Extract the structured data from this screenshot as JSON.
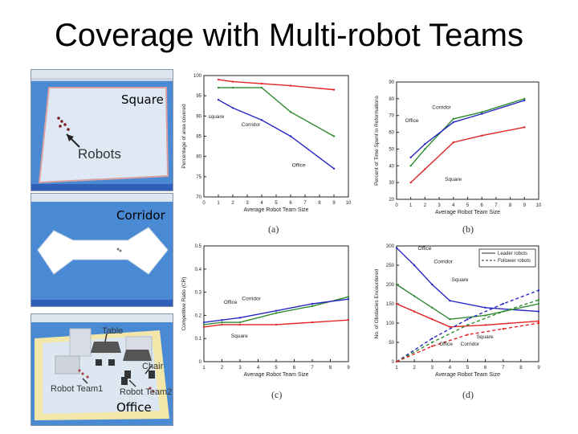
{
  "slide_title": "Coverage with Multi-robot Teams",
  "colors": {
    "red": "#e32222",
    "green": "#2f8a2f",
    "blue": "#2727c4",
    "sim_floor": "#dfe9f5",
    "sim_bg": "#4a8ad4"
  },
  "screens": {
    "square": {
      "label": "Square",
      "annotation": "Robots"
    },
    "corridor": {
      "label": "Corridor"
    },
    "office": {
      "label": "Office",
      "annotations": {
        "table": "Table",
        "chair": "Chair",
        "team1": "Robot Team1",
        "team2": "Robot Team2"
      }
    }
  },
  "chart_data": [
    {
      "id": "a",
      "type": "line",
      "caption": "(a)",
      "xlabel": "Average Robot Team Size",
      "ylabel": "Percentage of area covered",
      "xlim": [
        0,
        10
      ],
      "ylim": [
        70,
        100
      ],
      "xticks": [
        0,
        1,
        2,
        3,
        4,
        5,
        6,
        7,
        8,
        9,
        10
      ],
      "yticks": [
        70,
        75,
        80,
        85,
        90,
        95,
        100
      ],
      "series": [
        {
          "name": "square",
          "color": "red",
          "x": [
            1,
            2,
            4,
            6,
            9
          ],
          "y": [
            99,
            98.5,
            98,
            97.5,
            96.5
          ]
        },
        {
          "name": "Corridor",
          "color": "green",
          "x": [
            1,
            2,
            4,
            6,
            9
          ],
          "y": [
            97,
            97,
            97,
            91,
            85
          ]
        },
        {
          "name": "Office",
          "color": "blue",
          "x": [
            1,
            2,
            4,
            6,
            9
          ],
          "y": [
            94,
            92,
            89,
            85,
            77
          ]
        }
      ],
      "labels": [
        {
          "text": "square",
          "x": 0.3,
          "y": 89.5
        },
        {
          "text": "Corridor",
          "x": 2.6,
          "y": 87.5
        },
        {
          "text": "Office",
          "x": 6.1,
          "y": 77.5
        }
      ]
    },
    {
      "id": "b",
      "type": "line",
      "caption": "(b)",
      "xlabel": "Average Robot Team Size",
      "ylabel": "Percent of Time Spent in Reformations",
      "xlim": [
        0,
        10
      ],
      "ylim": [
        20,
        90
      ],
      "xticks": [
        0,
        1,
        2,
        3,
        4,
        5,
        6,
        7,
        8,
        9,
        10
      ],
      "yticks": [
        20,
        30,
        40,
        50,
        60,
        70,
        80,
        90
      ],
      "series": [
        {
          "name": "Square",
          "color": "red",
          "x": [
            1,
            2,
            4,
            6,
            9
          ],
          "y": [
            30,
            38,
            54,
            58,
            63
          ]
        },
        {
          "name": "Corridor",
          "color": "green",
          "x": [
            1,
            2,
            4,
            6,
            9
          ],
          "y": [
            40,
            50,
            68,
            72,
            80
          ]
        },
        {
          "name": "Office",
          "color": "blue",
          "x": [
            1,
            2,
            4,
            6,
            9
          ],
          "y": [
            45,
            53,
            66,
            71,
            79
          ]
        }
      ],
      "labels": [
        {
          "text": "Corridor",
          "x": 2.5,
          "y": 74
        },
        {
          "text": "Office",
          "x": 0.6,
          "y": 66
        },
        {
          "text": "Square",
          "x": 3.4,
          "y": 31
        }
      ]
    },
    {
      "id": "c",
      "type": "line",
      "caption": "(c)",
      "xlabel": "Average Robot Team Size",
      "ylabel": "Competitive Ratio (CR)",
      "xlim": [
        1,
        9
      ],
      "ylim": [
        0,
        0.5
      ],
      "xticks": [
        1,
        2,
        3,
        4,
        5,
        6,
        7,
        8,
        9
      ],
      "yticks": [
        0,
        0.1,
        0.2,
        0.3,
        0.4,
        0.5
      ],
      "series": [
        {
          "name": "Square",
          "color": "red",
          "x": [
            1,
            2,
            3,
            5,
            7,
            9
          ],
          "y": [
            0.15,
            0.16,
            0.16,
            0.16,
            0.17,
            0.18
          ]
        },
        {
          "name": "Corridor",
          "color": "green",
          "x": [
            1,
            2,
            3,
            5,
            7,
            9
          ],
          "y": [
            0.16,
            0.17,
            0.17,
            0.21,
            0.24,
            0.28
          ]
        },
        {
          "name": "Office",
          "color": "blue",
          "x": [
            1,
            2,
            3,
            5,
            7,
            9
          ],
          "y": [
            0.17,
            0.18,
            0.19,
            0.22,
            0.25,
            0.27
          ]
        }
      ],
      "labels": [
        {
          "text": "Office",
          "x": 2.1,
          "y": 0.25
        },
        {
          "text": "Corridor",
          "x": 3.1,
          "y": 0.265
        },
        {
          "text": "Square",
          "x": 2.5,
          "y": 0.105
        }
      ]
    },
    {
      "id": "d",
      "type": "line",
      "caption": "(d)",
      "xlabel": "Average Robot Team Size",
      "ylabel": "No. of Obstacles Encountered",
      "xlim": [
        1,
        9
      ],
      "ylim": [
        0,
        300
      ],
      "xticks": [
        1,
        2,
        3,
        4,
        5,
        6,
        7,
        8,
        9
      ],
      "yticks": [
        0,
        50,
        100,
        150,
        200,
        250,
        300
      ],
      "legend": [
        "Leader robots",
        "Follower robots"
      ],
      "series": [
        {
          "name": "Office",
          "color": "blue",
          "style": "solid",
          "x": [
            1,
            2,
            3,
            4,
            6,
            9
          ],
          "y": [
            295,
            250,
            200,
            158,
            140,
            130
          ]
        },
        {
          "name": "Square",
          "color": "green",
          "style": "solid",
          "x": [
            1,
            2,
            3,
            4,
            6,
            9
          ],
          "y": [
            200,
            170,
            140,
            110,
            120,
            150
          ]
        },
        {
          "name": "Corridor",
          "color": "red",
          "style": "solid",
          "x": [
            1,
            2,
            3,
            4,
            6,
            9
          ],
          "y": [
            150,
            130,
            110,
            90,
            95,
            105
          ]
        },
        {
          "name": "Office",
          "color": "blue",
          "style": "dashed",
          "x": [
            1,
            3,
            5,
            7,
            9
          ],
          "y": [
            0,
            60,
            110,
            150,
            185
          ]
        },
        {
          "name": "Square",
          "color": "green",
          "style": "dashed",
          "x": [
            1,
            3,
            5,
            7,
            9
          ],
          "y": [
            0,
            50,
            95,
            130,
            160
          ]
        },
        {
          "name": "Corridor",
          "color": "red",
          "style": "dashed",
          "x": [
            1,
            3,
            5,
            7,
            9
          ],
          "y": [
            0,
            40,
            70,
            85,
            100
          ]
        }
      ],
      "labels": [
        {
          "text": "Office",
          "x": 2.2,
          "y": 290
        },
        {
          "text": "Corridor",
          "x": 3.1,
          "y": 255
        },
        {
          "text": "Square",
          "x": 4.1,
          "y": 208
        },
        {
          "text": "Square",
          "x": 5.5,
          "y": 60
        },
        {
          "text": "Corridor",
          "x": 4.6,
          "y": 42
        },
        {
          "text": "Office",
          "x": 3.4,
          "y": 42
        }
      ]
    }
  ]
}
